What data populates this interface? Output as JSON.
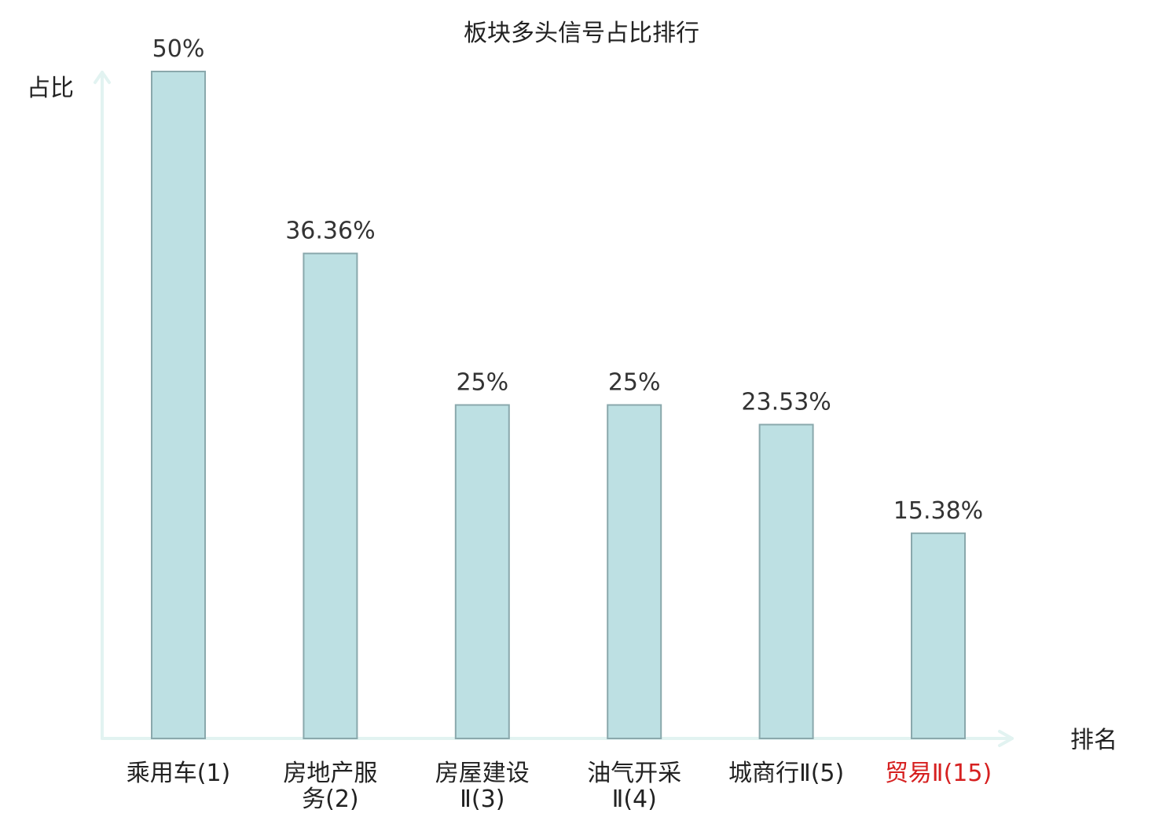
{
  "chart_data": {
    "type": "bar",
    "title": "板块多头信号占比排行",
    "xlabel": "排名",
    "ylabel": "占比",
    "ylim": [
      0,
      50
    ],
    "grid": false,
    "categories": [
      [
        "乘用车(1)"
      ],
      [
        "房地产服",
        "务(2)"
      ],
      [
        "房屋建设",
        "Ⅱ(3)"
      ],
      [
        "油气开采",
        "Ⅱ(4)"
      ],
      [
        "城商行Ⅱ(5)"
      ],
      [
        "贸易Ⅱ(15)"
      ]
    ],
    "values": [
      50,
      36.36,
      25,
      25,
      23.53,
      15.38
    ],
    "value_labels": [
      "50%",
      "36.36%",
      "25%",
      "25%",
      "23.53%",
      "15.38%"
    ],
    "highlight_index": 5,
    "colors": {
      "bar_fill": "#bde0e3",
      "bar_stroke": "#8aa8ac",
      "axis": "#e2f3f1",
      "highlight_text": "#d62020",
      "text": "#222222"
    }
  }
}
